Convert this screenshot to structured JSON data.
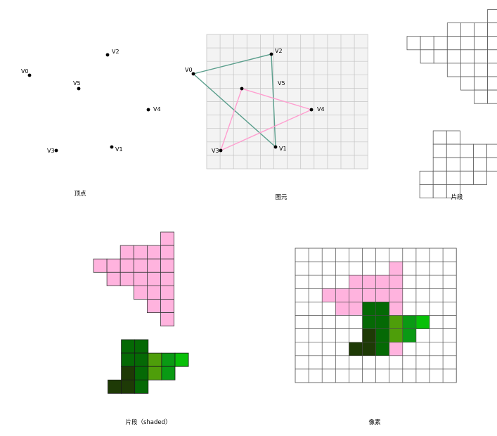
{
  "captions": {
    "vertices": "顶点",
    "primitives": "图元",
    "fragments": "片段",
    "shaded": "片段（shaded）",
    "pixels": "像素"
  },
  "vertex_labels": [
    "V0",
    "V1",
    "V2",
    "V3",
    "V4",
    "V5"
  ],
  "colors": {
    "pink": "#ffb3de",
    "triangle_a": "#5a9e8c",
    "triangle_b": "#ff9fd0",
    "grid_fill": "#f3f3f3",
    "grid_line": "#c4c4c4",
    "green_dark": "#1e3a06",
    "green": "#056905",
    "green_mid": "#4e9e0a",
    "green_light": "#08c008",
    "green_teal": "#0a9a14"
  }
}
